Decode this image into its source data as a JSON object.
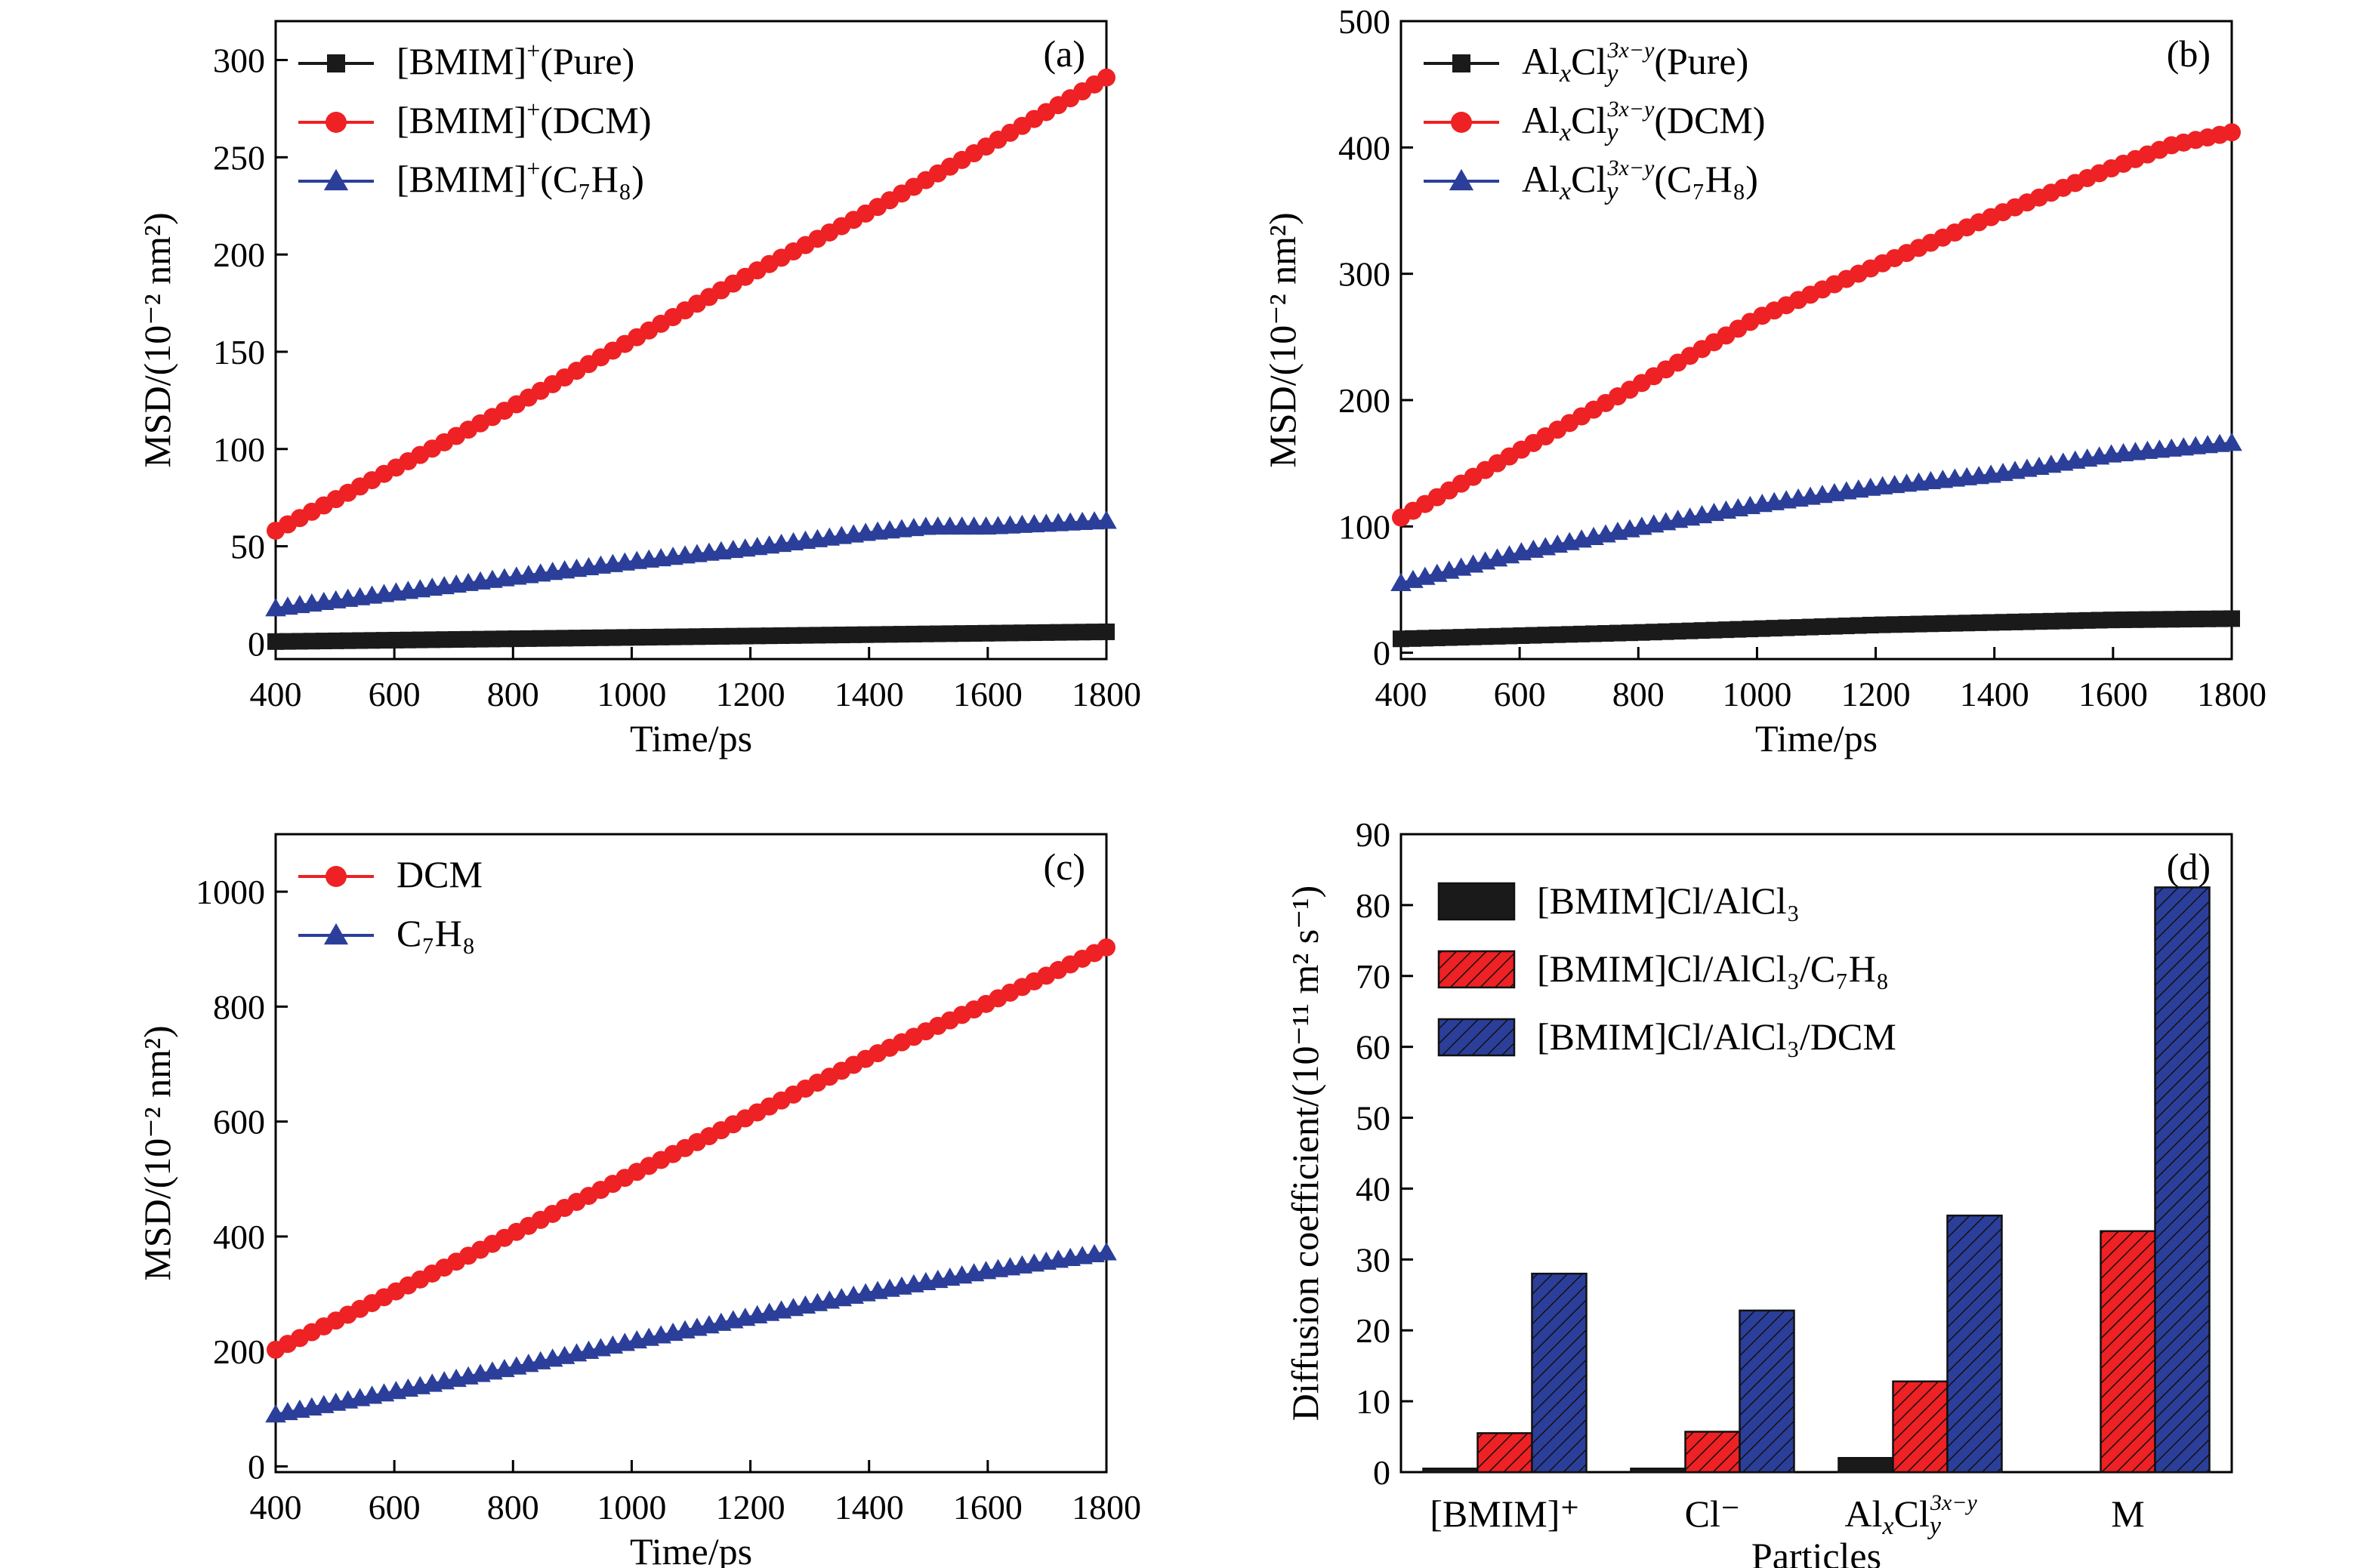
{
  "colors": {
    "black": "#1a1a1a",
    "red": "#ee2124",
    "blue": "#2b3f9a"
  },
  "chart_data": [
    {
      "id": "a",
      "type": "line",
      "panel_label": "(a)",
      "xlabel": "Time/ps",
      "ylabel": "MSD/(10⁻² nm²)",
      "xlim": [
        400,
        1800
      ],
      "ylim": [
        -8,
        320
      ],
      "xticks": [
        400,
        600,
        800,
        1000,
        1200,
        1400,
        1600,
        1800
      ],
      "yticks": [
        0,
        50,
        100,
        150,
        200,
        250,
        300
      ],
      "legend_position": "top-left",
      "series": [
        {
          "name": "[BMIM]⁺(Pure)",
          "base": "[BMIM]",
          "sup": "+",
          "sub": "",
          "tail": "(Pure)",
          "color": "#1a1a1a",
          "marker": "square",
          "x": [
            400,
            1800
          ],
          "y": [
            1,
            6
          ]
        },
        {
          "name": "[BMIM]⁺(DCM)",
          "base": "[BMIM]",
          "sup": "+",
          "sub": "",
          "tail": "(DCM)",
          "color": "#ee2124",
          "marker": "circle",
          "x": [
            400,
            600,
            800,
            1000,
            1200,
            1400,
            1600,
            1800
          ],
          "y": [
            58,
            90,
            122,
            156,
            190,
            222,
            256,
            291
          ]
        },
        {
          "name": "[BMIM]⁺(C₇H₈)",
          "base": "[BMIM]",
          "sup": "+",
          "sub": "",
          "tail": "(C₇H₈)",
          "color": "#2b3f9a",
          "marker": "triangle",
          "x": [
            400,
            600,
            800,
            1000,
            1200,
            1400,
            1500,
            1600,
            1800
          ],
          "y": [
            18,
            26,
            34,
            42,
            49,
            57,
            60,
            60,
            63
          ]
        }
      ]
    },
    {
      "id": "b",
      "type": "line",
      "panel_label": "(b)",
      "xlabel": "Time/ps",
      "ylabel": "MSD/(10⁻² nm²)",
      "xlim": [
        400,
        1800
      ],
      "ylim": [
        -5,
        500
      ],
      "xticks": [
        400,
        600,
        800,
        1000,
        1200,
        1400,
        1600,
        1800
      ],
      "yticks": [
        0,
        100,
        200,
        300,
        400,
        500
      ],
      "legend_position": "top-left",
      "series": [
        {
          "name": "AlxCly3x−y(Pure)",
          "base": "Al",
          "sup": "3x−y",
          "sub": "",
          "tail": "(Pure)",
          "color": "#1a1a1a",
          "marker": "square",
          "x": [
            400,
            800,
            1200,
            1600,
            1800
          ],
          "y": [
            11,
            16,
            22,
            26,
            27
          ]
        },
        {
          "name": "AlxCly3x−y(DCM)",
          "base": "Al",
          "sup": "3x−y",
          "sub": "",
          "tail": "(DCM)",
          "color": "#ee2124",
          "marker": "circle",
          "x": [
            400,
            600,
            800,
            1000,
            1200,
            1400,
            1600,
            1700,
            1800
          ],
          "y": [
            107,
            160,
            212,
            265,
            306,
            346,
            384,
            402,
            412
          ]
        },
        {
          "name": "AlxCly3x−y(C₇H₈)",
          "base": "Al",
          "sup": "3x−y",
          "sub": "",
          "tail": "(C₇H₈)",
          "color": "#2b3f9a",
          "marker": "triangle",
          "x": [
            400,
            600,
            800,
            1000,
            1200,
            1400,
            1600,
            1800
          ],
          "y": [
            55,
            79,
            99,
            117,
            131,
            141,
            157,
            166
          ]
        }
      ]
    },
    {
      "id": "c",
      "type": "line",
      "panel_label": "(c)",
      "xlabel": "Time/ps",
      "ylabel": "MSD/(10⁻² nm²)",
      "xlim": [
        400,
        1800
      ],
      "ylim": [
        -10,
        1100
      ],
      "xticks": [
        400,
        600,
        800,
        1000,
        1200,
        1400,
        1600,
        1800
      ],
      "yticks": [
        0,
        200,
        400,
        600,
        800,
        1000
      ],
      "legend_position": "top-left",
      "series": [
        {
          "name": "DCM",
          "base": "DCM",
          "sup": "",
          "sub": "",
          "tail": "",
          "color": "#ee2124",
          "marker": "circle",
          "x": [
            400,
            600,
            800,
            1000,
            1200,
            1400,
            1600,
            1800
          ],
          "y": [
            203,
            303,
            405,
            508,
            610,
            712,
            806,
            903
          ]
        },
        {
          "name": "C₇H₈",
          "base": "C₇H₈",
          "sup": "",
          "sub": "",
          "tail": "",
          "color": "#2b3f9a",
          "marker": "triangle",
          "x": [
            400,
            600,
            800,
            1000,
            1200,
            1400,
            1600,
            1800
          ],
          "y": [
            90,
            130,
            172,
            217,
            260,
            302,
            340,
            372
          ]
        }
      ]
    },
    {
      "id": "d",
      "type": "bar",
      "panel_label": "(d)",
      "xlabel": "Particles",
      "ylabel": "Diffusion coefficient/(10⁻¹¹ m² s⁻¹)",
      "ylim": [
        0,
        90
      ],
      "yticks": [
        0,
        10,
        20,
        30,
        40,
        50,
        60,
        70,
        80,
        90
      ],
      "legend_position": "top-left",
      "categories": [
        "[BMIM]⁺",
        "Cl⁻",
        "AlxCly3x−y",
        "M"
      ],
      "series": [
        {
          "name": "[BMIM]Cl/AlCl₃",
          "color": "#1a1a1a",
          "hatch": false,
          "values": [
            0.5,
            0.5,
            2,
            0
          ]
        },
        {
          "name": "[BMIM]Cl/AlCl₃/C₇H₈",
          "color": "#ee2124",
          "hatch": true,
          "values": [
            5.5,
            5.7,
            12.8,
            34
          ]
        },
        {
          "name": "[BMIM]Cl/AlCl₃/DCM",
          "color": "#2b3f9a",
          "hatch": true,
          "values": [
            28,
            22.8,
            36.2,
            82.5
          ]
        }
      ]
    }
  ]
}
